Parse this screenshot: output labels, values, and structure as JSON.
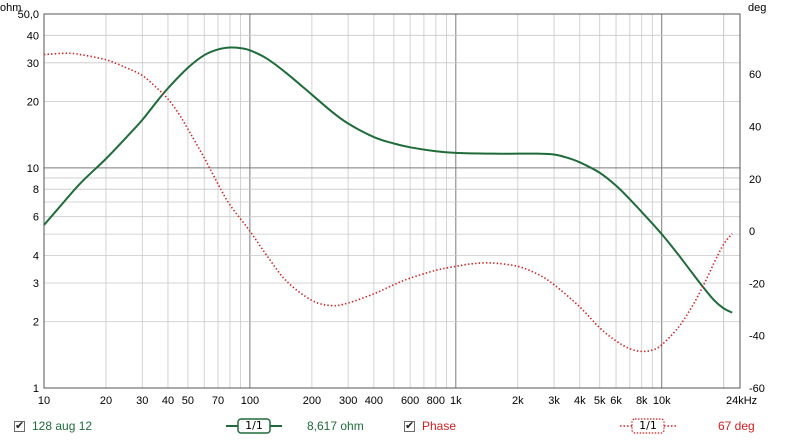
{
  "chart_data": {
    "type": "line",
    "x_scale": "log",
    "xlim": [
      10,
      24000
    ],
    "x_ticks": [
      {
        "v": 10,
        "label": "10"
      },
      {
        "v": 20,
        "label": "20"
      },
      {
        "v": 30,
        "label": "30"
      },
      {
        "v": 40,
        "label": "40"
      },
      {
        "v": 50,
        "label": "50"
      },
      {
        "v": 70,
        "label": "70"
      },
      {
        "v": 100,
        "label": "100"
      },
      {
        "v": 200,
        "label": "200"
      },
      {
        "v": 300,
        "label": "300"
      },
      {
        "v": 400,
        "label": "400"
      },
      {
        "v": 600,
        "label": "600"
      },
      {
        "v": 800,
        "label": "800"
      },
      {
        "v": 1000,
        "label": "1k"
      },
      {
        "v": 2000,
        "label": "2k"
      },
      {
        "v": 3000,
        "label": "3k"
      },
      {
        "v": 4000,
        "label": "4k"
      },
      {
        "v": 5000,
        "label": "5k"
      },
      {
        "v": 6000,
        "label": "6k"
      },
      {
        "v": 8000,
        "label": "8k"
      },
      {
        "v": 10000,
        "label": "10k"
      },
      {
        "v": 24000,
        "label": "24kHz"
      }
    ],
    "y_left": {
      "unit_label": "ohm",
      "scale": "log",
      "lim": [
        1,
        50
      ],
      "ticks": [
        {
          "v": 50,
          "label": "50,0"
        },
        {
          "v": 40,
          "label": "40"
        },
        {
          "v": 30,
          "label": "30"
        },
        {
          "v": 20,
          "label": "20"
        },
        {
          "v": 10,
          "label": "10"
        },
        {
          "v": 8,
          "label": "8"
        },
        {
          "v": 6,
          "label": "6"
        },
        {
          "v": 4,
          "label": "4"
        },
        {
          "v": 3,
          "label": "3"
        },
        {
          "v": 2,
          "label": "2"
        },
        {
          "v": 1,
          "label": "1"
        }
      ]
    },
    "y_right": {
      "unit_label": "deg",
      "scale": "linear",
      "lim": [
        -60,
        83
      ],
      "ticks": [
        {
          "v": 60,
          "label": "60"
        },
        {
          "v": 40,
          "label": "40"
        },
        {
          "v": 20,
          "label": "20"
        },
        {
          "v": 0,
          "label": "0"
        },
        {
          "v": -20,
          "label": "-20"
        },
        {
          "v": -40,
          "label": "-40"
        },
        {
          "v": -60,
          "label": "-60"
        }
      ]
    },
    "grid": true,
    "series": [
      {
        "name": "128 aug 12",
        "axis": "left",
        "color": "#1f6b3a",
        "style": "solid",
        "points": [
          [
            10,
            5.5
          ],
          [
            12,
            6.7
          ],
          [
            15,
            8.5
          ],
          [
            20,
            11
          ],
          [
            25,
            13.7
          ],
          [
            30,
            16.5
          ],
          [
            35,
            19.8
          ],
          [
            40,
            23
          ],
          [
            50,
            28.5
          ],
          [
            60,
            32.5
          ],
          [
            70,
            34.5
          ],
          [
            80,
            35.2
          ],
          [
            90,
            35
          ],
          [
            100,
            34.2
          ],
          [
            120,
            31.5
          ],
          [
            150,
            27
          ],
          [
            200,
            21.5
          ],
          [
            250,
            18
          ],
          [
            300,
            15.9
          ],
          [
            400,
            13.8
          ],
          [
            500,
            12.9
          ],
          [
            600,
            12.4
          ],
          [
            800,
            11.9
          ],
          [
            1000,
            11.7
          ],
          [
            1500,
            11.6
          ],
          [
            2000,
            11.6
          ],
          [
            2500,
            11.6
          ],
          [
            3000,
            11.5
          ],
          [
            3500,
            11.1
          ],
          [
            4000,
            10.6
          ],
          [
            5000,
            9.5
          ],
          [
            6000,
            8.3
          ],
          [
            7000,
            7.2
          ],
          [
            8000,
            6.3
          ],
          [
            10000,
            5.0
          ],
          [
            12000,
            4.05
          ],
          [
            14000,
            3.35
          ],
          [
            16000,
            2.85
          ],
          [
            18000,
            2.5
          ],
          [
            20000,
            2.3
          ],
          [
            22000,
            2.2
          ]
        ]
      },
      {
        "name": "Phase",
        "axis": "right",
        "color": "#d02020",
        "style": "dotted",
        "points": [
          [
            10,
            67.5
          ],
          [
            13,
            68
          ],
          [
            15,
            67.5
          ],
          [
            20,
            65.5
          ],
          [
            25,
            62.5
          ],
          [
            30,
            59.5
          ],
          [
            35,
            55
          ],
          [
            40,
            50.5
          ],
          [
            45,
            45
          ],
          [
            50,
            39
          ],
          [
            60,
            28
          ],
          [
            70,
            18
          ],
          [
            80,
            10
          ],
          [
            100,
            0
          ],
          [
            120,
            -9
          ],
          [
            150,
            -19
          ],
          [
            200,
            -26.5
          ],
          [
            250,
            -28.5
          ],
          [
            300,
            -27.5
          ],
          [
            400,
            -24
          ],
          [
            500,
            -20.5
          ],
          [
            600,
            -18
          ],
          [
            800,
            -15
          ],
          [
            1000,
            -13.5
          ],
          [
            1200,
            -12.5
          ],
          [
            1500,
            -12.2
          ],
          [
            2000,
            -13.5
          ],
          [
            2500,
            -16.5
          ],
          [
            3000,
            -20.5
          ],
          [
            4000,
            -29
          ],
          [
            5000,
            -37
          ],
          [
            6000,
            -42
          ],
          [
            7000,
            -45
          ],
          [
            8000,
            -46
          ],
          [
            9000,
            -45.5
          ],
          [
            10000,
            -43.5
          ],
          [
            12000,
            -37
          ],
          [
            14000,
            -29
          ],
          [
            16000,
            -20.5
          ],
          [
            18000,
            -12
          ],
          [
            20000,
            -5
          ],
          [
            22000,
            -1
          ]
        ]
      }
    ]
  },
  "legend": {
    "series1_name": "128 aug 12",
    "smoothing_left": "1/1",
    "readout_value": "8,617 ohm",
    "series2_name": "Phase",
    "smoothing_right": "1/1",
    "phase_readout": "67 deg"
  }
}
